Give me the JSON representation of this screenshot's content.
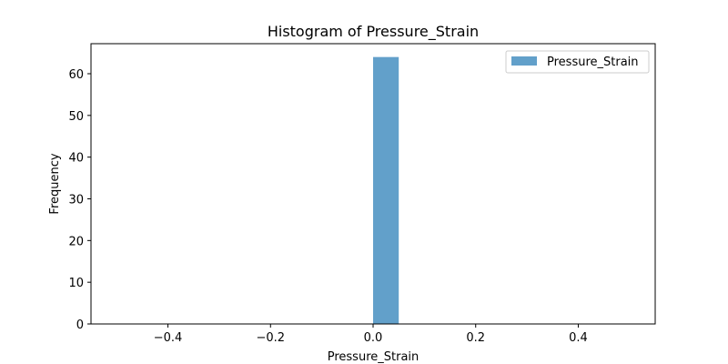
{
  "chart_data": {
    "type": "bar",
    "title": "Histogram of Pressure_Strain",
    "xlabel": "Pressure_Strain",
    "ylabel": "Frequency",
    "xlim": [
      -0.55,
      0.55
    ],
    "ylim": [
      0,
      67.2
    ],
    "xticks": [
      -0.4,
      -0.2,
      0.0,
      0.2,
      0.4
    ],
    "xtick_labels": [
      "−0.4",
      "−0.2",
      "0.0",
      "0.2",
      "0.4"
    ],
    "yticks": [
      0,
      10,
      20,
      30,
      40,
      50,
      60
    ],
    "ytick_labels": [
      "0",
      "10",
      "20",
      "30",
      "40",
      "50",
      "60"
    ],
    "grid": false,
    "legend_position": "top-right",
    "series": [
      {
        "name": "Pressure_Strain",
        "color": "#1f77b4",
        "opacity": 0.7,
        "bins": [
          {
            "x0": 0.0,
            "x1": 0.05,
            "count": 64
          }
        ]
      }
    ]
  }
}
